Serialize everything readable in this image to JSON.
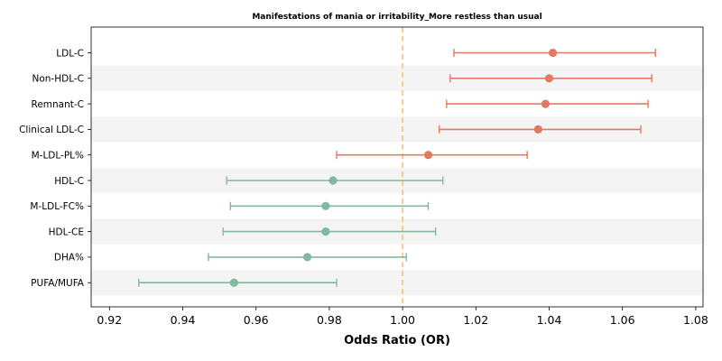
{
  "chart_data": {
    "type": "forest",
    "title": "Manifestations of mania or irritability_More restless than usual",
    "xlabel": "Odds Ratio (OR)",
    "xlim": [
      0.915,
      1.082
    ],
    "xticks": [
      "0.92",
      "0.94",
      "0.96",
      "0.98",
      "1.00",
      "1.02",
      "1.04",
      "1.06",
      "1.08"
    ],
    "reference_line": 1.0,
    "reference_color": "#f2c37b",
    "band_color": "#f4f4f4",
    "colors": {
      "positive": "#e07b62",
      "negative": "#82b89e"
    },
    "rows": [
      {
        "label": "LDL-C",
        "or": 1.041,
        "lower": 1.014,
        "upper": 1.069
      },
      {
        "label": "Non-HDL-C",
        "or": 1.04,
        "lower": 1.013,
        "upper": 1.068
      },
      {
        "label": "Remnant-C",
        "or": 1.039,
        "lower": 1.012,
        "upper": 1.067
      },
      {
        "label": "Clinical LDL-C",
        "or": 1.037,
        "lower": 1.01,
        "upper": 1.065
      },
      {
        "label": "M-LDL-PL%",
        "or": 1.007,
        "lower": 0.982,
        "upper": 1.034
      },
      {
        "label": "HDL-C",
        "or": 0.981,
        "lower": 0.952,
        "upper": 1.011
      },
      {
        "label": "M-LDL-FC%",
        "or": 0.979,
        "lower": 0.953,
        "upper": 1.007
      },
      {
        "label": "HDL-CE",
        "or": 0.979,
        "lower": 0.951,
        "upper": 1.009
      },
      {
        "label": "DHA%",
        "or": 0.974,
        "lower": 0.947,
        "upper": 1.001
      },
      {
        "label": "PUFA/MUFA",
        "or": 0.954,
        "lower": 0.928,
        "upper": 0.982
      }
    ]
  }
}
